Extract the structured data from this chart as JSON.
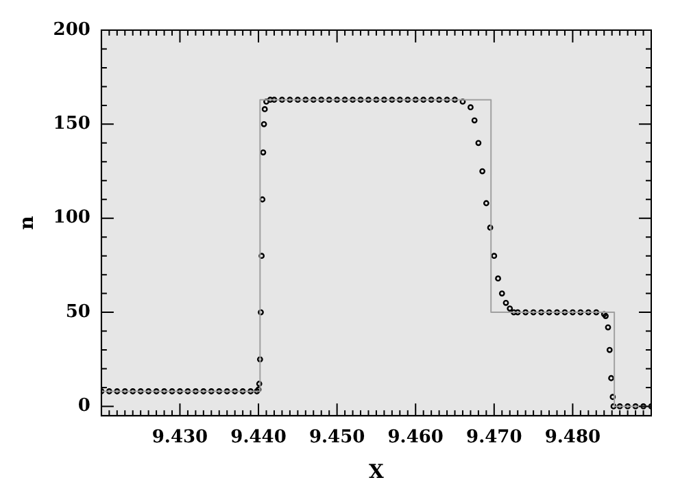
{
  "chart_data": {
    "type": "scatter",
    "xlabel": "X",
    "ylabel": "n",
    "xlim": [
      9.42,
      9.49
    ],
    "ylim": [
      -5,
      200
    ],
    "xticks": [
      {
        "value": 9.421,
        "label": null
      },
      {
        "value": 9.422,
        "label": null
      },
      {
        "value": 9.423,
        "label": null
      },
      {
        "value": 9.424,
        "label": null
      },
      {
        "value": 9.425,
        "label": null
      },
      {
        "value": 9.426,
        "label": null
      },
      {
        "value": 9.427,
        "label": null
      },
      {
        "value": 9.428,
        "label": null
      },
      {
        "value": 9.429,
        "label": null
      },
      {
        "value": 9.43,
        "label": "9.430"
      },
      {
        "value": 9.431,
        "label": null
      },
      {
        "value": 9.432,
        "label": null
      },
      {
        "value": 9.433,
        "label": null
      },
      {
        "value": 9.434,
        "label": null
      },
      {
        "value": 9.435,
        "label": null
      },
      {
        "value": 9.436,
        "label": null
      },
      {
        "value": 9.437,
        "label": null
      },
      {
        "value": 9.438,
        "label": null
      },
      {
        "value": 9.439,
        "label": null
      },
      {
        "value": 9.44,
        "label": "9.440"
      },
      {
        "value": 9.441,
        "label": null
      },
      {
        "value": 9.442,
        "label": null
      },
      {
        "value": 9.443,
        "label": null
      },
      {
        "value": 9.444,
        "label": null
      },
      {
        "value": 9.445,
        "label": null
      },
      {
        "value": 9.446,
        "label": null
      },
      {
        "value": 9.447,
        "label": null
      },
      {
        "value": 9.448,
        "label": null
      },
      {
        "value": 9.449,
        "label": null
      },
      {
        "value": 9.45,
        "label": "9.450"
      },
      {
        "value": 9.451,
        "label": null
      },
      {
        "value": 9.452,
        "label": null
      },
      {
        "value": 9.453,
        "label": null
      },
      {
        "value": 9.454,
        "label": null
      },
      {
        "value": 9.455,
        "label": null
      },
      {
        "value": 9.456,
        "label": null
      },
      {
        "value": 9.457,
        "label": null
      },
      {
        "value": 9.458,
        "label": null
      },
      {
        "value": 9.459,
        "label": null
      },
      {
        "value": 9.46,
        "label": "9.460"
      },
      {
        "value": 9.461,
        "label": null
      },
      {
        "value": 9.462,
        "label": null
      },
      {
        "value": 9.463,
        "label": null
      },
      {
        "value": 9.464,
        "label": null
      },
      {
        "value": 9.465,
        "label": null
      },
      {
        "value": 9.466,
        "label": null
      },
      {
        "value": 9.467,
        "label": null
      },
      {
        "value": 9.468,
        "label": null
      },
      {
        "value": 9.469,
        "label": null
      },
      {
        "value": 9.47,
        "label": "9.470"
      },
      {
        "value": 9.471,
        "label": null
      },
      {
        "value": 9.472,
        "label": null
      },
      {
        "value": 9.473,
        "label": null
      },
      {
        "value": 9.474,
        "label": null
      },
      {
        "value": 9.475,
        "label": null
      },
      {
        "value": 9.476,
        "label": null
      },
      {
        "value": 9.477,
        "label": null
      },
      {
        "value": 9.478,
        "label": null
      },
      {
        "value": 9.479,
        "label": null
      },
      {
        "value": 9.48,
        "label": "9.480"
      },
      {
        "value": 9.481,
        "label": null
      },
      {
        "value": 9.482,
        "label": null
      },
      {
        "value": 9.483,
        "label": null
      },
      {
        "value": 9.484,
        "label": null
      },
      {
        "value": 9.485,
        "label": null
      },
      {
        "value": 9.486,
        "label": null
      },
      {
        "value": 9.487,
        "label": null
      },
      {
        "value": 9.488,
        "label": null
      },
      {
        "value": 9.489,
        "label": null
      }
    ],
    "yticks": [
      0,
      {
        "value": 10,
        "label": null
      },
      {
        "value": 20,
        "label": null
      },
      {
        "value": 30,
        "label": null
      },
      {
        "value": 40,
        "label": null
      },
      50,
      {
        "value": 60,
        "label": null
      },
      {
        "value": 70,
        "label": null
      },
      {
        "value": 80,
        "label": null
      },
      {
        "value": 90,
        "label": null
      },
      100,
      {
        "value": 110,
        "label": null
      },
      {
        "value": 120,
        "label": null
      },
      {
        "value": 130,
        "label": null
      },
      {
        "value": 140,
        "label": null
      },
      150,
      {
        "value": 160,
        "label": null
      },
      {
        "value": 170,
        "label": null
      },
      {
        "value": 180,
        "label": null
      },
      {
        "value": 190,
        "label": null
      },
      200
    ],
    "legend": false,
    "marker": "circle",
    "series": [
      {
        "type": "line",
        "color": "#a0a0a0",
        "marker": "none",
        "x": [
          9.42,
          9.4402,
          9.4402,
          9.4696,
          9.4696,
          9.4853,
          9.4853,
          9.49
        ],
        "values": [
          8,
          8,
          163,
          163,
          50,
          50,
          0,
          0
        ]
      },
      {
        "color": "#000000",
        "x": [
          9.42,
          9.421,
          9.422,
          9.423,
          9.424,
          9.425,
          9.426,
          9.427,
          9.428,
          9.429,
          9.43,
          9.431,
          9.432,
          9.433,
          9.434,
          9.435,
          9.436,
          9.437,
          9.438,
          9.439,
          9.4398,
          9.44,
          9.4401,
          9.4402,
          9.4403,
          9.4404,
          9.4405,
          9.4406,
          9.4407,
          9.4408,
          9.441,
          9.4415,
          9.442,
          9.443,
          9.444,
          9.445,
          9.446,
          9.447,
          9.448,
          9.449,
          9.45,
          9.451,
          9.452,
          9.453,
          9.454,
          9.455,
          9.456,
          9.457,
          9.458,
          9.459,
          9.46,
          9.461,
          9.462,
          9.463,
          9.464,
          9.465,
          9.466,
          9.467,
          9.4675,
          9.468,
          9.4685,
          9.469,
          9.4695,
          9.47,
          9.4705,
          9.471,
          9.4715,
          9.472,
          9.4725,
          9.473,
          9.474,
          9.475,
          9.476,
          9.477,
          9.478,
          9.479,
          9.48,
          9.481,
          9.482,
          9.483,
          9.484,
          9.4842,
          9.4845,
          9.4847,
          9.4849,
          9.4851,
          9.4852,
          9.486,
          9.487,
          9.488,
          9.489,
          9.49
        ],
        "values": [
          8,
          8,
          8,
          8,
          8,
          8,
          8,
          8,
          8,
          8,
          8,
          8,
          8,
          8,
          8,
          8,
          8,
          8,
          8,
          8,
          8,
          9,
          12,
          25,
          50,
          80,
          110,
          135,
          150,
          158,
          162,
          163,
          163,
          163,
          163,
          163,
          163,
          163,
          163,
          163,
          163,
          163,
          163,
          163,
          163,
          163,
          163,
          163,
          163,
          163,
          163,
          163,
          163,
          163,
          163,
          163,
          162,
          159,
          152,
          140,
          125,
          108,
          95,
          80,
          68,
          60,
          55,
          52,
          50,
          50,
          50,
          50,
          50,
          50,
          50,
          50,
          50,
          50,
          50,
          50,
          49,
          48,
          42,
          30,
          15,
          5,
          0,
          0,
          0,
          0,
          0,
          0
        ]
      }
    ]
  }
}
